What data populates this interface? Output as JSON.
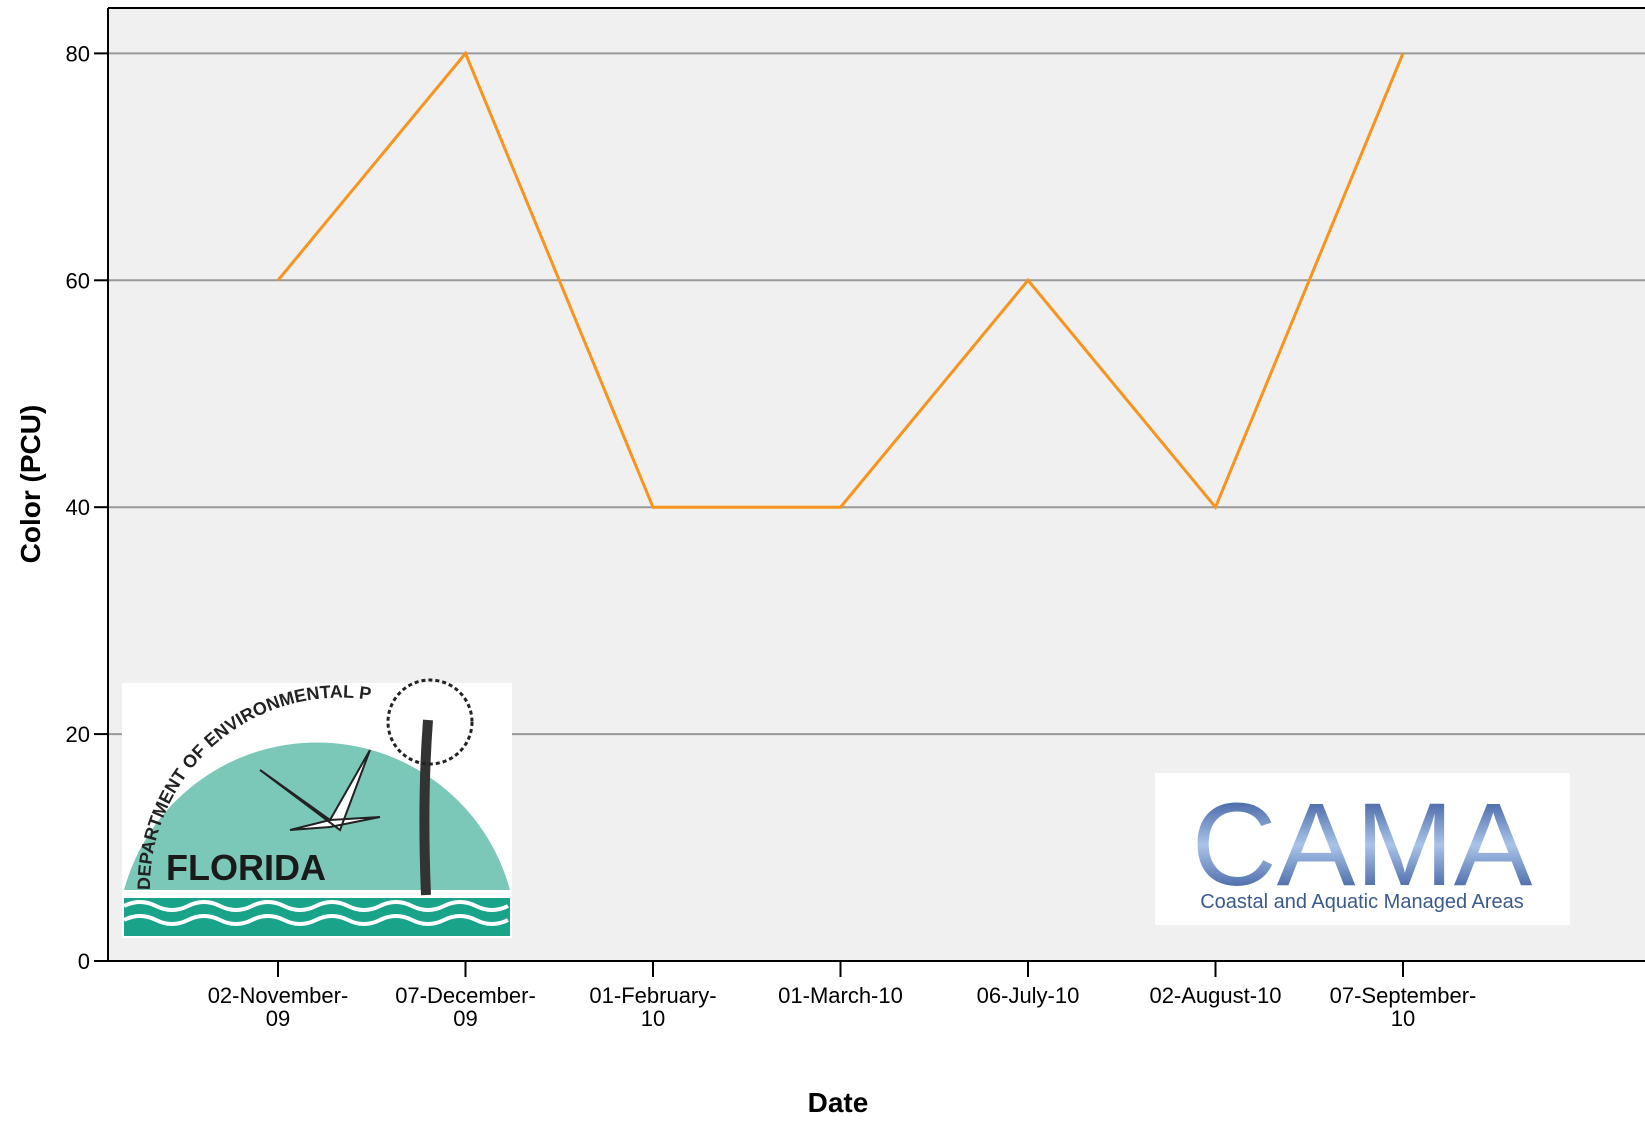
{
  "chart_data": {
    "type": "line",
    "x_label": "Date",
    "y_label": "Color (PCU)",
    "categories": [
      "02-November-09",
      "07-December-09",
      "01-February-10",
      "01-March-10",
      "06-July-10",
      "02-August-10",
      "07-September-10"
    ],
    "series": [
      {
        "name": "Color",
        "color": "#f7941d",
        "values": [
          60,
          80,
          40,
          40,
          60,
          40,
          80
        ]
      }
    ],
    "ylim": [
      0,
      84
    ],
    "yticks": [
      0,
      20,
      40,
      60,
      80
    ],
    "grid": true,
    "logos": {
      "fdep_arc": "DEPARTMENT OF ENVIRONMENTAL PROTECTION",
      "fdep_name": "FLORIDA",
      "cama_name": "CAMA",
      "cama_full": "Coastal and Aquatic Managed Areas"
    }
  }
}
